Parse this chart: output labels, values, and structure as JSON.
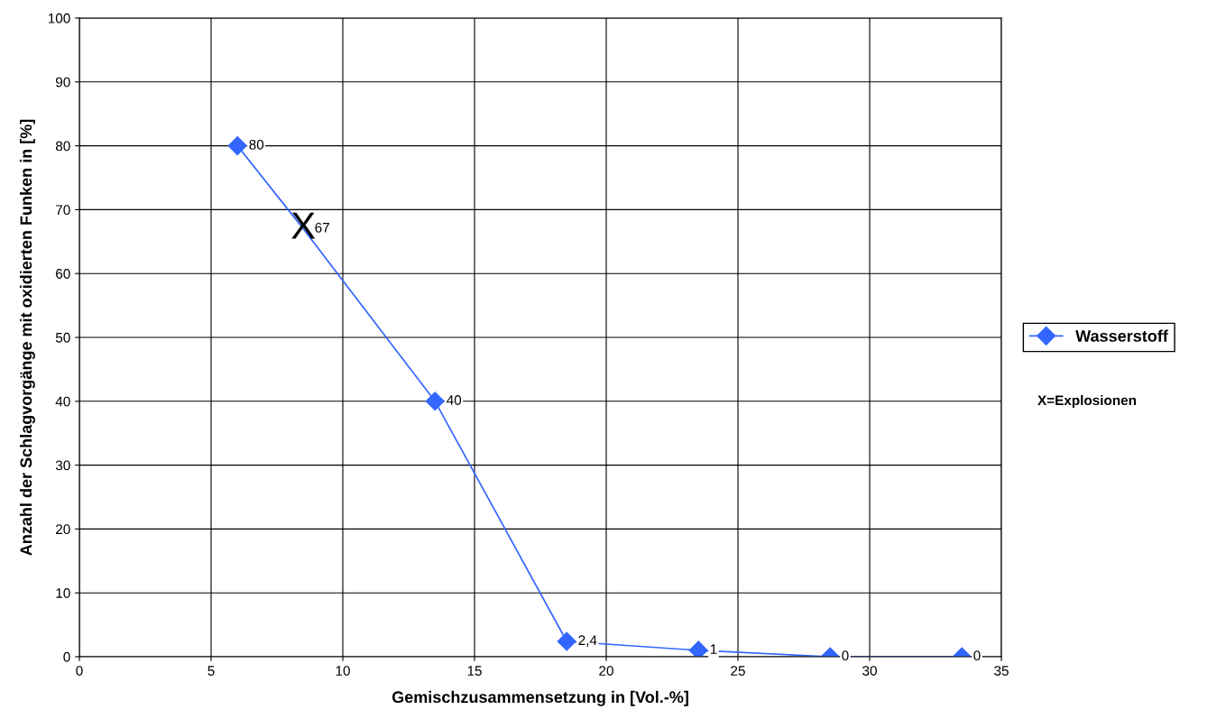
{
  "chart_data": {
    "type": "line",
    "xlabel": "Gemischzusammensetzung in [Vol.-%]",
    "ylabel": "Anzahl der Schlagvorgänge mit oxidierten Funken in [%]",
    "x": [
      6,
      8.5,
      13.5,
      18.5,
      23.5,
      28.5,
      33.5
    ],
    "series": [
      {
        "name": "Wasserstoff",
        "color": "#3366ff",
        "values": [
          80,
          67,
          40,
          2.4,
          1,
          0,
          0
        ],
        "value_labels": [
          "80",
          "67",
          "40",
          "2,4",
          "1",
          "0",
          "0"
        ]
      }
    ],
    "xlim": [
      0,
      35
    ],
    "xticks": [
      0,
      5,
      10,
      15,
      20,
      25,
      30,
      35
    ],
    "ylim": [
      0,
      100
    ],
    "yticks": [
      0,
      10,
      20,
      30,
      40,
      50,
      60,
      70,
      80,
      90,
      100
    ],
    "grid": true,
    "legend": "right",
    "marker": "diamond",
    "line_style": "solid",
    "annotations": [
      {
        "text": "X",
        "x": 8.5,
        "y": 67
      },
      "X=Explosionen"
    ]
  }
}
